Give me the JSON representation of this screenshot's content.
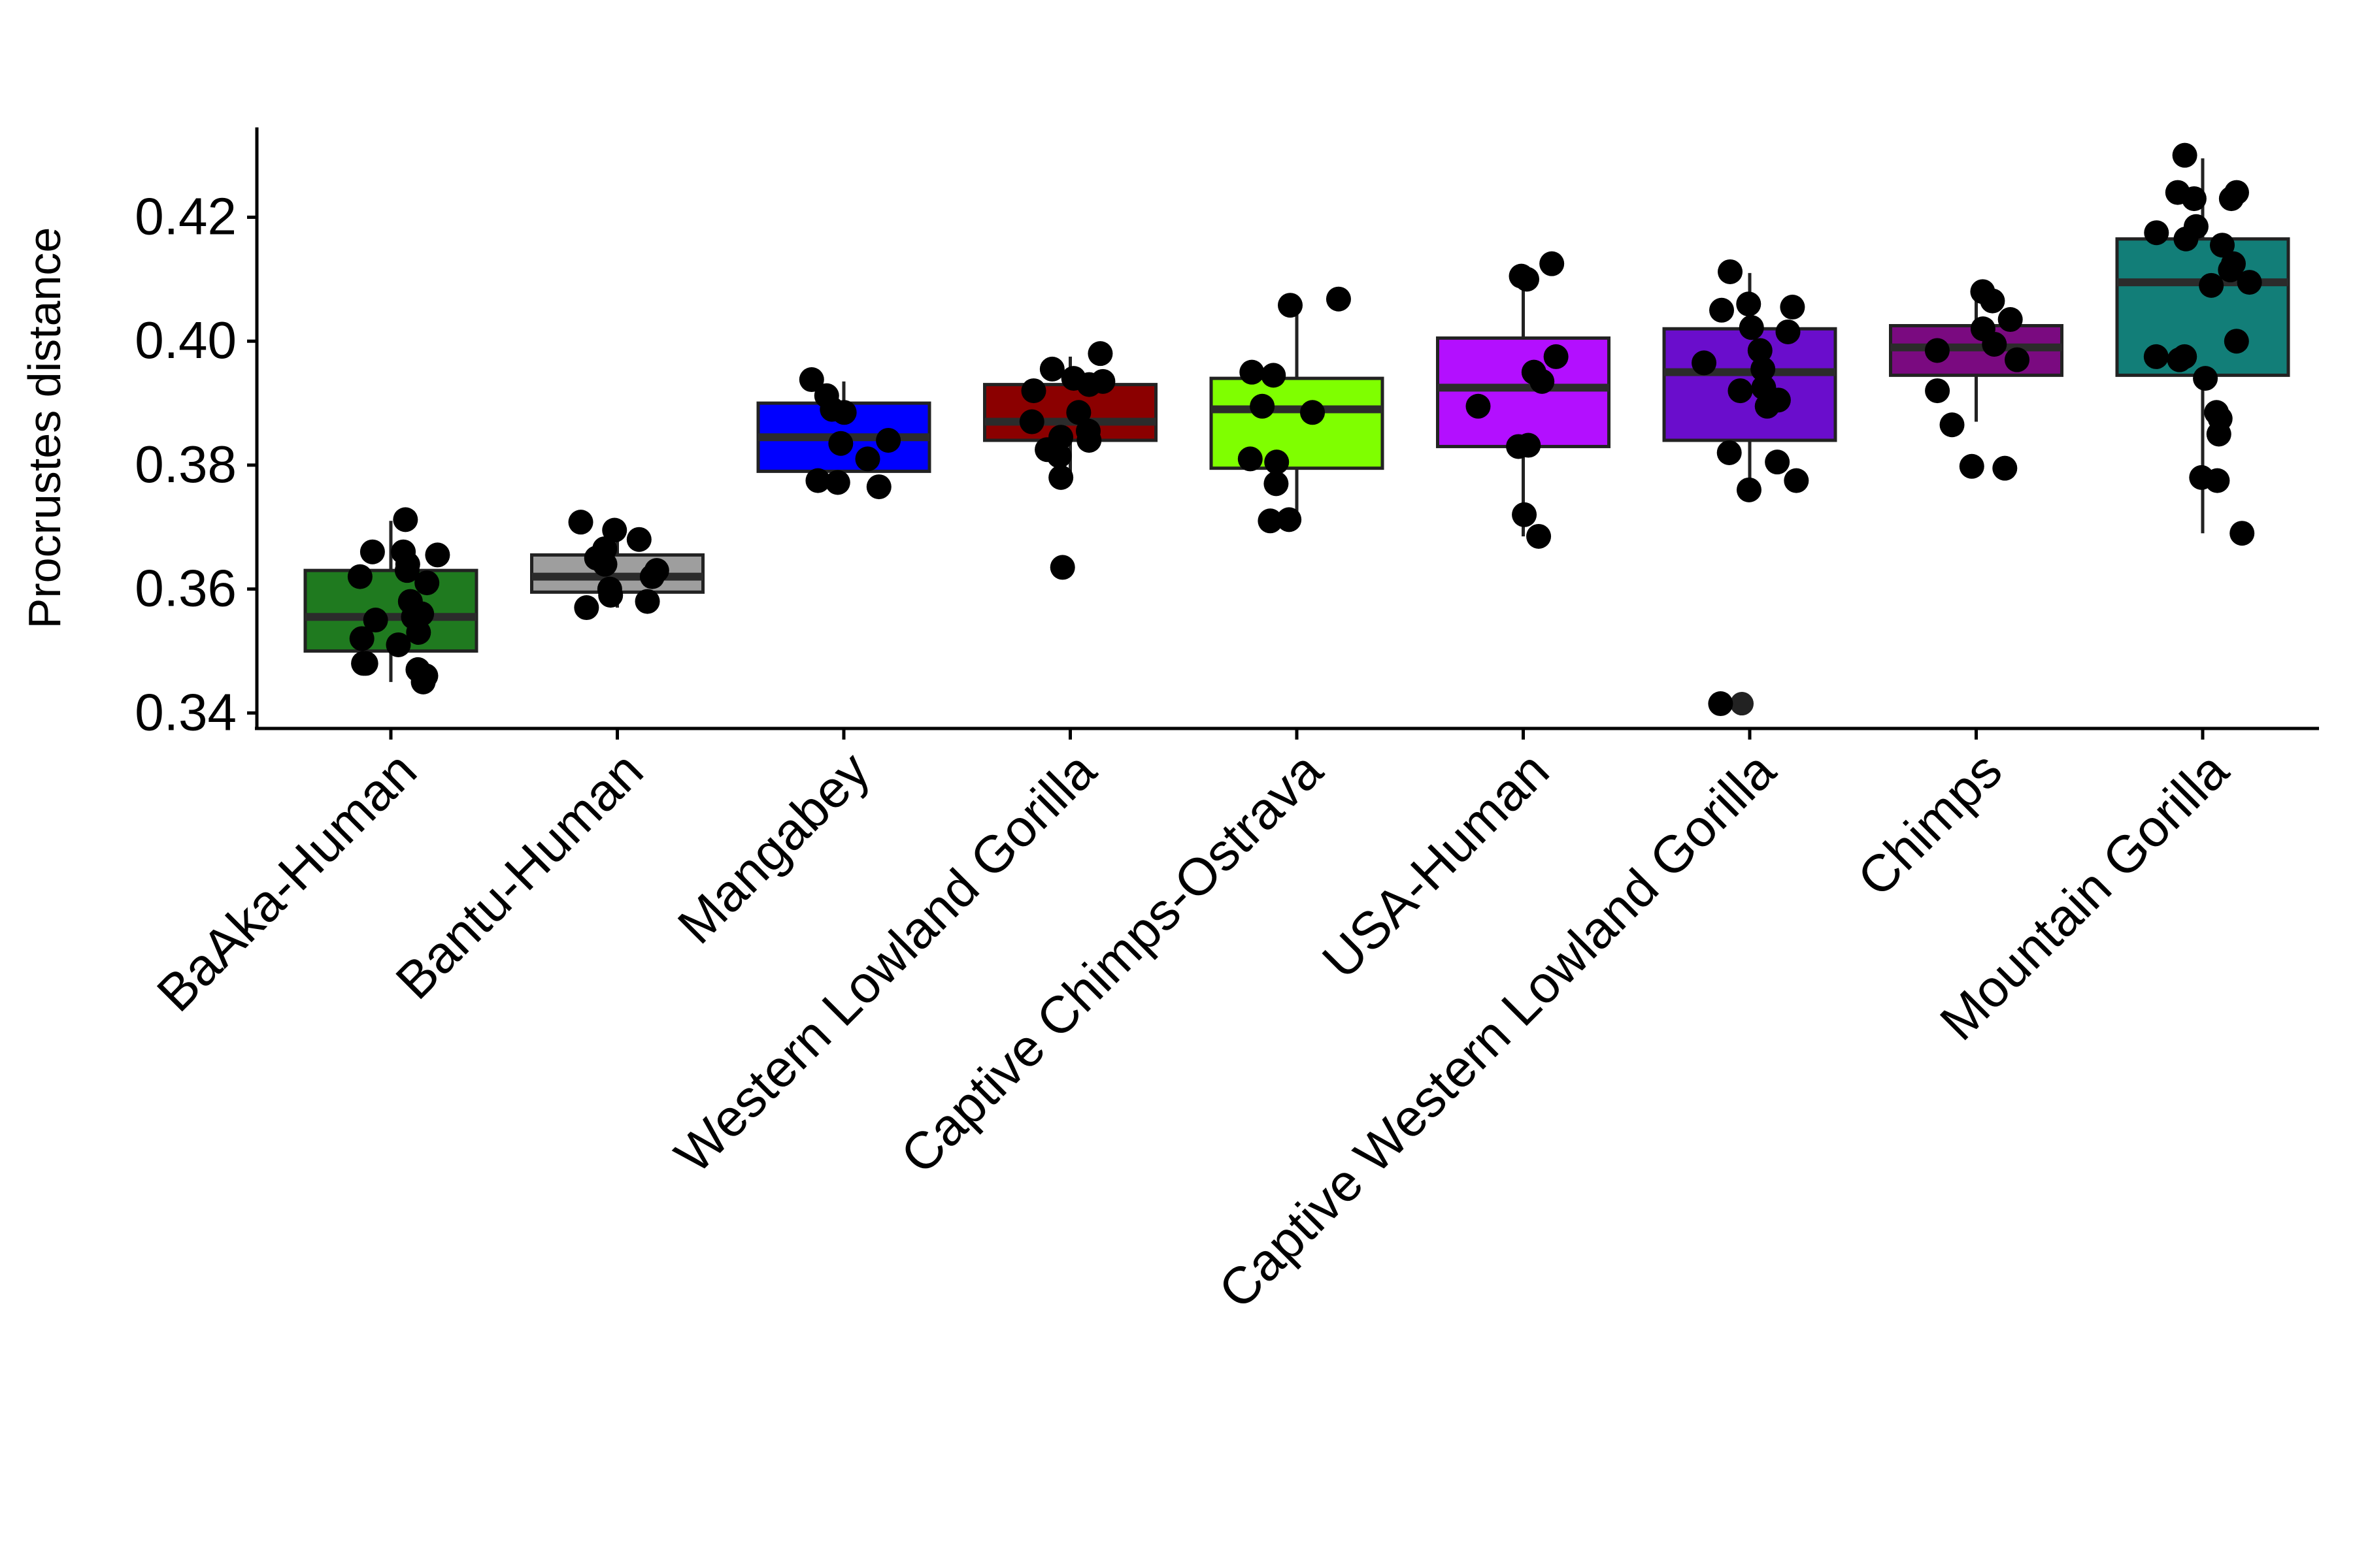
{
  "chart_data": {
    "type": "box",
    "title": "",
    "xlabel": "",
    "ylabel": "Procrustes distance",
    "ylim": [
      0.3375,
      0.4345
    ],
    "yticks": [
      0.34,
      0.36,
      0.38,
      0.4,
      0.42
    ],
    "ytick_labels": [
      "0.34",
      "0.36",
      "0.38",
      "0.40",
      "0.42"
    ],
    "grid": false,
    "legend": "none",
    "groups": [
      {
        "name": "BaAka-Human",
        "color": "#1f7a1f",
        "whisker_low": 0.345,
        "q1": 0.35,
        "median": 0.3555,
        "q3": 0.363,
        "whisker_high": 0.371,
        "outliers": [],
        "points": [
          0.3712,
          0.366,
          0.366,
          0.3655,
          0.364,
          0.363,
          0.362,
          0.361,
          0.358,
          0.356,
          0.3555,
          0.355,
          0.353,
          0.352,
          0.351,
          0.348,
          0.348,
          0.347,
          0.346,
          0.345
        ]
      },
      {
        "name": "Bantu-Human",
        "color": "#9e9e9e",
        "whisker_low": 0.357,
        "q1": 0.3595,
        "median": 0.362,
        "q3": 0.3655,
        "whisker_high": 0.37,
        "outliers": [],
        "points": [
          0.3708,
          0.3695,
          0.368,
          0.3665,
          0.365,
          0.364,
          0.363,
          0.362,
          0.36,
          0.359,
          0.358,
          0.357
        ]
      },
      {
        "name": "Mangabey",
        "color": "#0000ff",
        "whisker_low": 0.3765,
        "q1": 0.379,
        "median": 0.3845,
        "q3": 0.39,
        "whisker_high": 0.3935,
        "outliers": [],
        "points": [
          0.3938,
          0.3912,
          0.389,
          0.3885,
          0.384,
          0.3835,
          0.381,
          0.3775,
          0.3772,
          0.3765
        ]
      },
      {
        "name": "Western Lowland Gorilla",
        "color": "#8b0000",
        "whisker_low": 0.3775,
        "q1": 0.384,
        "median": 0.387,
        "q3": 0.393,
        "whisker_high": 0.3975,
        "outliers": [
          0.3635
        ],
        "points": [
          0.398,
          0.3955,
          0.394,
          0.3935,
          0.393,
          0.392,
          0.3885,
          0.387,
          0.3855,
          0.3845,
          0.384,
          0.3825,
          0.3815,
          0.378,
          0.3635
        ]
      },
      {
        "name": "Captive Chimps-Ostrava",
        "color": "#7fff00",
        "whisker_low": 0.371,
        "q1": 0.3795,
        "median": 0.389,
        "q3": 0.394,
        "whisker_high": 0.4065,
        "outliers": [],
        "points": [
          0.4068,
          0.4058,
          0.395,
          0.3945,
          0.3895,
          0.3885,
          0.381,
          0.3805,
          0.377,
          0.3712,
          0.371
        ]
      },
      {
        "name": "USA-Human",
        "color": "#b30fff",
        "whisker_low": 0.3685,
        "q1": 0.383,
        "median": 0.3925,
        "q3": 0.4005,
        "whisker_high": 0.41,
        "outliers": [],
        "points": [
          0.4125,
          0.4105,
          0.41,
          0.3975,
          0.395,
          0.3935,
          0.3895,
          0.3832,
          0.383,
          0.372,
          0.3685
        ]
      },
      {
        "name": "Captive Western Lowland Gorilla",
        "color": "#6a0dcc",
        "whisker_low": 0.3755,
        "q1": 0.384,
        "median": 0.395,
        "q3": 0.402,
        "whisker_high": 0.411,
        "outliers": [
          0.3415
        ],
        "points": [
          0.4112,
          0.406,
          0.4055,
          0.405,
          0.4022,
          0.4015,
          0.3985,
          0.3965,
          0.3955,
          0.3925,
          0.392,
          0.3905,
          0.3895,
          0.382,
          0.3805,
          0.3775,
          0.376,
          0.3415
        ]
      },
      {
        "name": "Chimps",
        "color": "#7a0a80",
        "whisker_low": 0.387,
        "q1": 0.3945,
        "median": 0.399,
        "q3": 0.4025,
        "whisker_high": 0.4075,
        "outliers": [],
        "points": [
          0.408,
          0.4065,
          0.4035,
          0.402,
          0.3995,
          0.3985,
          0.397,
          0.392,
          0.3865,
          0.3798,
          0.3795
        ]
      },
      {
        "name": "Mountain Gorilla",
        "color": "#127e78",
        "whisker_low": 0.369,
        "q1": 0.3945,
        "median": 0.4095,
        "q3": 0.4165,
        "whisker_high": 0.4295,
        "outliers": [],
        "points": [
          0.43,
          0.424,
          0.424,
          0.423,
          0.423,
          0.4185,
          0.4175,
          0.4165,
          0.4155,
          0.4125,
          0.4115,
          0.4095,
          0.409,
          0.4,
          0.3975,
          0.3975,
          0.397,
          0.394,
          0.3885,
          0.3875,
          0.385,
          0.378,
          0.3775,
          0.369
        ]
      }
    ]
  }
}
